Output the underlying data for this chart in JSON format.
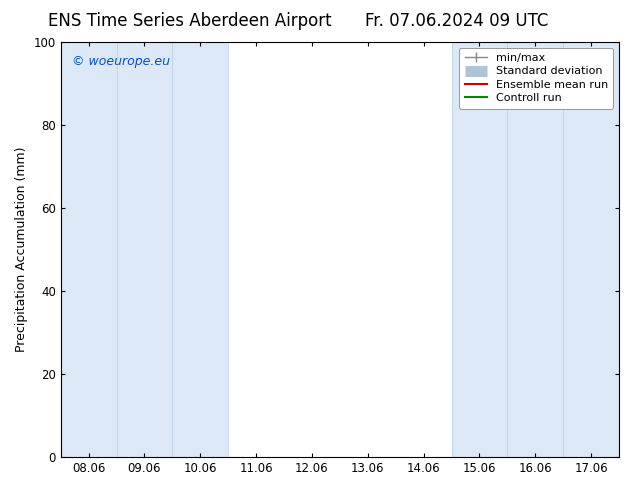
{
  "title_left": "ENS Time Series Aberdeen Airport",
  "title_right": "Fr. 07.06.2024 09 UTC",
  "ylabel": "Precipitation Accumulation (mm)",
  "watermark": "© woeurope.eu",
  "watermark_color": "#0055cc",
  "ylim": [
    0,
    100
  ],
  "yticks": [
    0,
    20,
    40,
    60,
    80,
    100
  ],
  "xtick_labels": [
    "08.06",
    "09.06",
    "10.06",
    "11.06",
    "12.06",
    "13.06",
    "14.06",
    "15.06",
    "16.06",
    "17.06"
  ],
  "bg_color": "#ffffff",
  "plot_bg_color": "#ffffff",
  "band_color": "#dce8f5",
  "band_edge_color": "#c0d4e8",
  "shaded_x_indices": [
    0,
    1,
    2,
    7,
    8,
    9
  ],
  "title_fontsize": 12,
  "axis_label_fontsize": 9,
  "tick_fontsize": 8.5,
  "legend_fontsize": 8
}
